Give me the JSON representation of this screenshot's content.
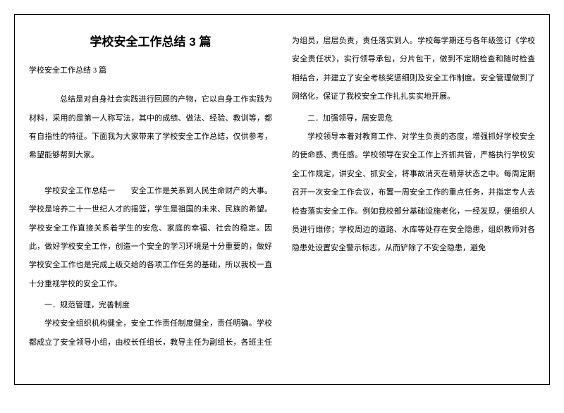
{
  "title": "学校安全工作总结 3 篇",
  "subtitle": "学校安全工作总结 3 篇",
  "intro": "总结是对自身社会实践进行回顾的产物，它以自身工作实践为材料，采用的是第一人称写法，其中的成绩、做法、经验、教训等，都有自指性的特征。下面我为大家带来了学校安全工作总结，仅供参考，希望能够帮到大家。",
  "body1": "学校安全工作总结一　　安全工作是关系到人民生命财产的大事。学校是培养二十一世纪人才的摇篮，学生是祖国的未来、民族的希望。学校安全工作直接关系着学生的安危、家庭的幸福、社会的稳定。因此，做好学校安全工作，创造一个安全的学习环境是十分重要的，做好学校安全工作也是完成上级交给的各项工作任务的基础，所以我校一直十分重视学校的安全工作。",
  "sec1": "一．规范管理，完善制度",
  "body2": "学校安全组织机构健全，安全工作责任制度健全，责任明确。学校都成立了安全领导小组，由校长任组长，教导主任为副组长，各班主任为组员，层层负责，责任落实到人。学校每学期还与各年级签订《学校安全责任状》，实行领导承包，分片包干，做到不定期检查和随时检查相结合，并建立了安全考核奖惩细则及安全工作制度。安全管理做到了网络化，保证了我校安全工作扎扎实实地开展。",
  "sec2": "二．加强领导，居安思危",
  "body3": "学校领导本着对教育工作、对学生负责的态度，增强抓好学校安全的使命感、责任感。学校领导在安全工作上齐抓共管，严格执行学校安全工作规定，讲安全、抓安全，将事故消灭在萌芽状态之中。每周定期召开一次安全工作会议，布置一周安全工作的重点任务，并指定专人去检查落实安全工作。例如我校部分基础设施老化，一经发现，便组织人员进行维修；学校周边的道路、水库等处存在安全隐患，组织教师对各隐患处设置安全警示标志，从而铲除了不安全隐患，避免"
}
